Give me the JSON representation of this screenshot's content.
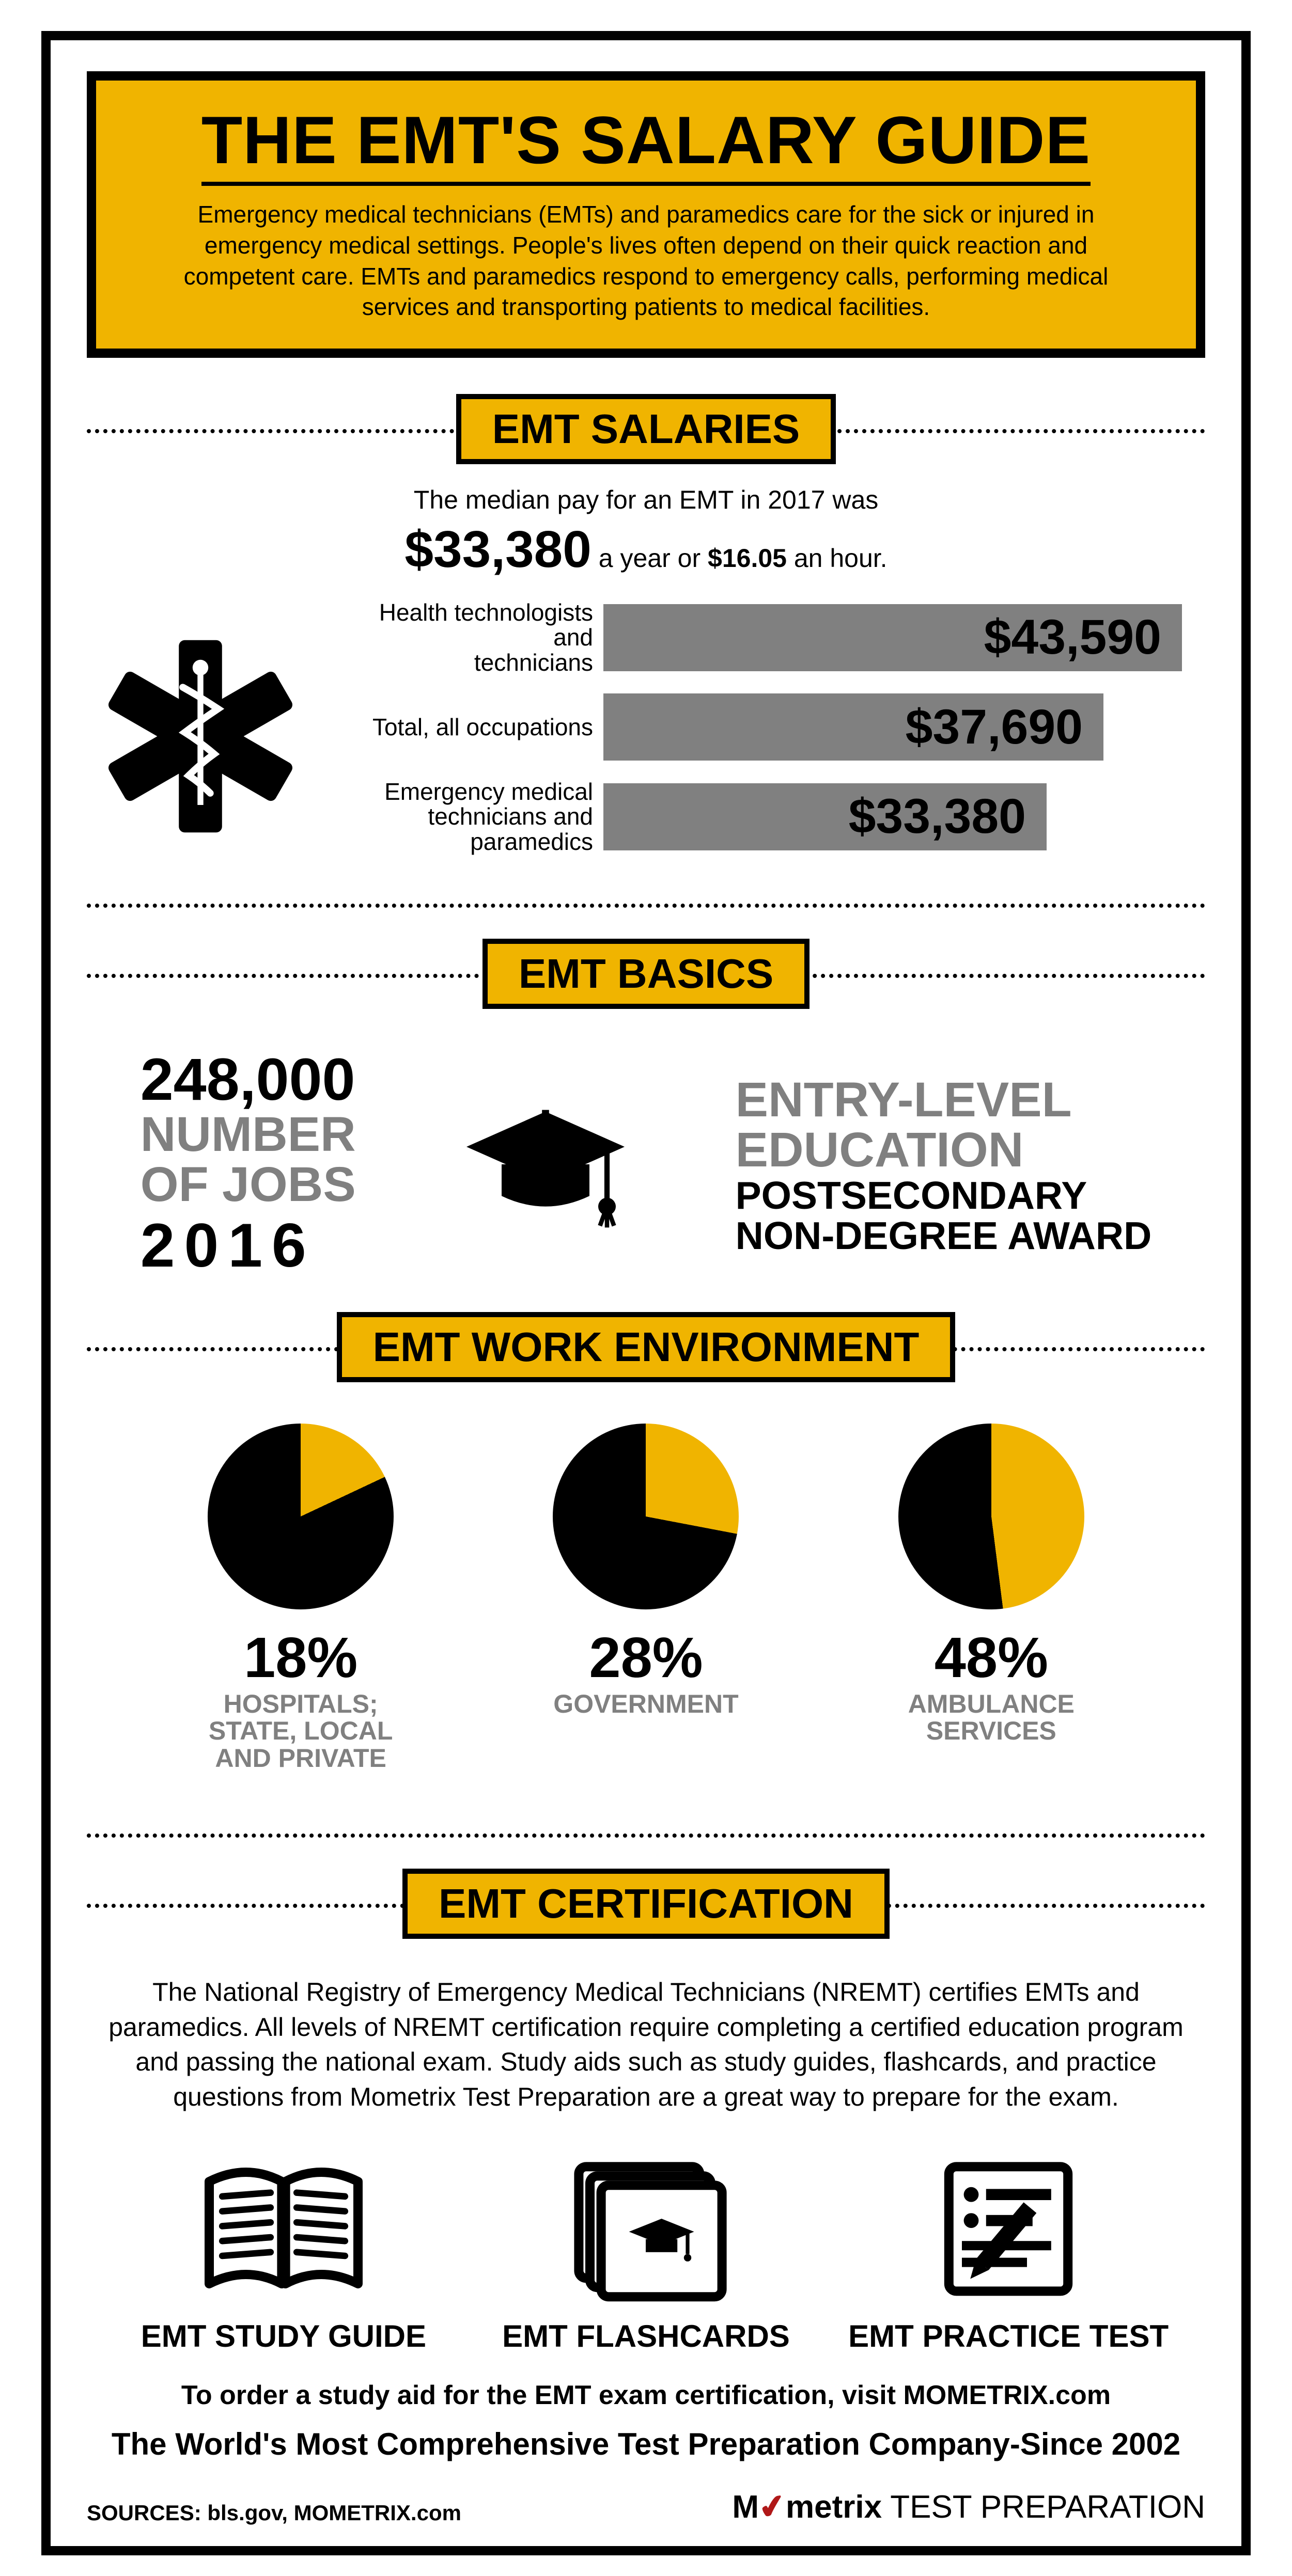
{
  "colors": {
    "yellow": "#f0b400",
    "grey": "#808080",
    "black": "#000000",
    "white": "#ffffff"
  },
  "hero": {
    "title": "THE EMT'S SALARY GUIDE",
    "body": "Emergency medical technicians (EMTs) and paramedics care for the sick or injured in emergency medical settings. People's lives often depend on their quick reaction and competent care. EMTs and paramedics respond to emergency calls, performing medical services and transporting patients to medical facilities."
  },
  "salaries": {
    "heading": "EMT SALARIES",
    "caption": "The median pay for an EMT in 2017 was",
    "big_amount": "$33,380",
    "big_mid": " a year or ",
    "big_hour": "$16.05",
    "big_tail": " an hour.",
    "bars": [
      {
        "label_line1": "Health technologists and",
        "label_line2": "technicians",
        "value_text": "$43,590",
        "value": 43590,
        "max": 43590
      },
      {
        "label_line1": "Total, all occupations",
        "label_line2": "",
        "value_text": "$37,690",
        "value": 37690,
        "max": 43590
      },
      {
        "label_line1": "Emergency medical",
        "label_line2": "technicians and paramedics",
        "value_text": "$33,380",
        "value": 33380,
        "max": 43590
      }
    ]
  },
  "basics": {
    "heading": "EMT BASICS",
    "jobs_num": "248,000",
    "jobs_l1": "NUMBER",
    "jobs_l2": "OF JOBS",
    "jobs_year": "2016",
    "edu_l1": "ENTRY-LEVEL",
    "edu_l2": "EDUCATION",
    "edu_award1": "POSTSECONDARY",
    "edu_award2": "NON-DEGREE AWARD"
  },
  "workenv": {
    "heading": "EMT WORK ENVIRONMENT",
    "pies": [
      {
        "pct": 18,
        "pct_text": "18%",
        "label_l1": "HOSPITALS;",
        "label_l2": "STATE, LOCAL",
        "label_l3": "AND PRIVATE"
      },
      {
        "pct": 28,
        "pct_text": "28%",
        "label_l1": "GOVERNMENT",
        "label_l2": "",
        "label_l3": ""
      },
      {
        "pct": 48,
        "pct_text": "48%",
        "label_l1": "AMBULANCE",
        "label_l2": "SERVICES",
        "label_l3": ""
      }
    ]
  },
  "cert": {
    "heading": "EMT CERTIFICATION",
    "body": "The National Registry of Emergency Medical Technicians (NREMT) certifies EMTs and paramedics. All levels of NREMT certification require completing a certified education program and passing the national exam. Study aids such as study guides, flashcards, and practice questions from Mometrix Test Preparation are a great way to prepare for the exam.",
    "icons": [
      {
        "label": "EMT STUDY GUIDE"
      },
      {
        "label": "EMT FLASHCARDS"
      },
      {
        "label": "EMT PRACTICE TEST"
      }
    ],
    "order_line": "To order a study aid for the EMT exam certification, visit MOMETRIX.com",
    "tagline": "The World's Most Comprehensive Test Preparation Company-Since 2002"
  },
  "footer": {
    "sources": "SOURCES: bls.gov, MOMETRIX.com",
    "logo_brand": "Mometrix",
    "logo_tail": " TEST PREPARATION"
  }
}
